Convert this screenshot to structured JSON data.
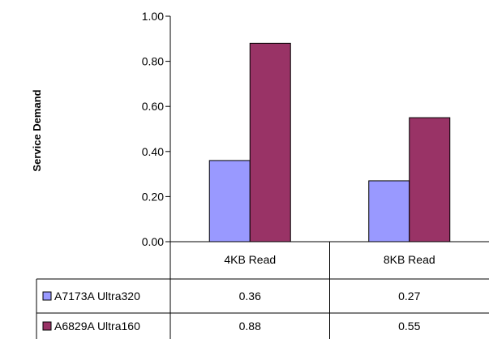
{
  "chart_data": {
    "type": "bar",
    "categories": [
      "4KB Read",
      "8KB Read"
    ],
    "series": [
      {
        "name": "A7173A Ultra320",
        "values": [
          0.36,
          0.27
        ],
        "labels": [
          "0.36",
          "0.27"
        ],
        "color": "#9999ff"
      },
      {
        "name": "A6829A Ultra160",
        "values": [
          0.88,
          0.55
        ],
        "labels": [
          "0.88",
          "0.55"
        ],
        "color": "#993366"
      }
    ],
    "title": "",
    "xlabel": "",
    "ylabel": "Service Demand",
    "ylim": [
      0,
      1
    ],
    "yticks": [
      "0.00",
      "0.20",
      "0.40",
      "0.60",
      "0.80",
      "1.00"
    ],
    "grid": false,
    "legend": "data-table-left"
  }
}
